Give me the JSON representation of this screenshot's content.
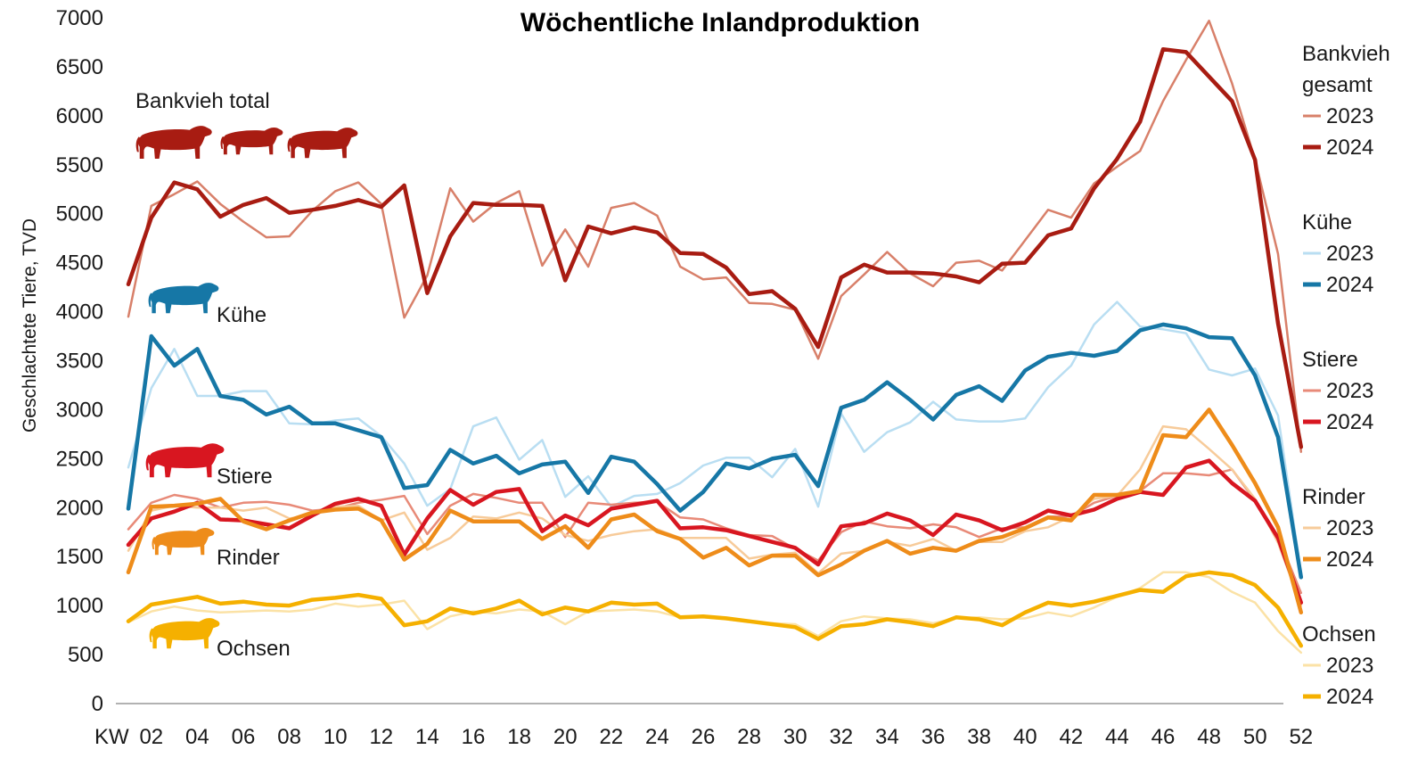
{
  "chart_data": {
    "type": "line",
    "title": "Wöchentliche Inlandproduktion",
    "ylabel": "Geschlachtete Tiere, TVD",
    "xlabel": "KW",
    "ylim": [
      0,
      7000
    ],
    "yticks": [
      0,
      500,
      1000,
      1500,
      2000,
      2500,
      3000,
      3500,
      4000,
      4500,
      5000,
      5500,
      6000,
      6500,
      7000
    ],
    "xticks": [
      "02",
      "04",
      "06",
      "08",
      "10",
      "12",
      "14",
      "16",
      "18",
      "20",
      "22",
      "24",
      "26",
      "28",
      "30",
      "32",
      "34",
      "36",
      "38",
      "40",
      "42",
      "44",
      "46",
      "48",
      "50",
      "52"
    ],
    "x": [
      1,
      2,
      3,
      4,
      5,
      6,
      7,
      8,
      9,
      10,
      11,
      12,
      13,
      14,
      15,
      16,
      17,
      18,
      19,
      20,
      21,
      22,
      23,
      24,
      25,
      26,
      27,
      28,
      29,
      30,
      31,
      32,
      33,
      34,
      35,
      36,
      37,
      38,
      39,
      40,
      41,
      42,
      43,
      44,
      45,
      46,
      47,
      48,
      49,
      50,
      51,
      52
    ],
    "grid": false,
    "legend_position": "right",
    "groups": [
      {
        "id": "bankvieh",
        "legend_title": [
          "Bankvieh",
          "gesamt"
        ],
        "annotation": "Bankvieh total",
        "icon": "cattle-icon",
        "series": [
          {
            "name": "2023",
            "color": "#d8806a",
            "width": 2.5,
            "values": [
              3950,
              5080,
              5200,
              5330,
              5100,
              4920,
              4760,
              4770,
              5030,
              5230,
              5320,
              5100,
              3940,
              4370,
              5260,
              4920,
              5110,
              5230,
              4470,
              4840,
              4460,
              5060,
              5110,
              4980,
              4460,
              4330,
              4350,
              4090,
              4080,
              4020,
              3520,
              4160,
              4380,
              4610,
              4390,
              4260,
              4500,
              4520,
              4420,
              4730,
              5040,
              4960,
              5310,
              5480,
              5640,
              6150,
              6570,
              6970,
              6330,
              5550,
              4590,
              2570
            ]
          },
          {
            "name": "2024",
            "color": "#a81c12",
            "width": 4.5,
            "values": [
              4280,
              4960,
              5320,
              5250,
              4970,
              5090,
              5160,
              5010,
              5040,
              5080,
              5140,
              5070,
              5290,
              4190,
              4770,
              5110,
              5090,
              5090,
              5080,
              4320,
              4870,
              4800,
              4860,
              4810,
              4600,
              4590,
              4450,
              4180,
              4210,
              4030,
              3640,
              4350,
              4480,
              4400,
              4400,
              4390,
              4360,
              4300,
              4490,
              4500,
              4780,
              4850,
              5260,
              5560,
              5940,
              6680,
              6650,
              6400,
              6150,
              5550,
              3880,
              2620
            ]
          }
        ]
      },
      {
        "id": "kuehe",
        "legend_title": [
          "Kühe"
        ],
        "annotation": "Kühe",
        "icon": "cow-icon",
        "series": [
          {
            "name": "2023",
            "color": "#b9def2",
            "width": 2.5,
            "values": [
              2410,
              3220,
              3620,
              3140,
              3140,
              3190,
              3190,
              2860,
              2850,
              2890,
              2910,
              2730,
              2450,
              2020,
              2190,
              2830,
              2920,
              2490,
              2690,
              2110,
              2320,
              2010,
              2120,
              2140,
              2250,
              2430,
              2510,
              2510,
              2310,
              2600,
              2010,
              2960,
              2570,
              2770,
              2870,
              3080,
              2900,
              2880,
              2880,
              2910,
              3230,
              3450,
              3870,
              4100,
              3850,
              3820,
              3780,
              3410,
              3350,
              3420,
              2940,
              1330
            ]
          },
          {
            "name": "2024",
            "color": "#1677a6",
            "width": 4.5,
            "values": [
              1990,
              3750,
              3450,
              3620,
              3140,
              3100,
              2950,
              3030,
              2860,
              2860,
              2790,
              2720,
              2200,
              2230,
              2590,
              2450,
              2530,
              2350,
              2440,
              2470,
              2150,
              2520,
              2470,
              2240,
              1970,
              2160,
              2450,
              2400,
              2500,
              2540,
              2220,
              3020,
              3100,
              3280,
              3100,
              2900,
              3150,
              3240,
              3090,
              3400,
              3540,
              3580,
              3550,
              3600,
              3810,
              3870,
              3830,
              3740,
              3730,
              3350,
              2720,
              1290
            ]
          }
        ]
      },
      {
        "id": "stiere",
        "legend_title": [
          "Stiere"
        ],
        "annotation": "Stiere",
        "icon": "bull-icon",
        "series": [
          {
            "name": "2023",
            "color": "#e88a78",
            "width": 2.5,
            "values": [
              1780,
              2050,
              2130,
              2090,
              2000,
              2050,
              2060,
              2030,
              1970,
              1990,
              2050,
              2080,
              2120,
              1730,
              2020,
              2140,
              2100,
              2050,
              2050,
              1700,
              2050,
              2030,
              2050,
              2060,
              1900,
              1880,
              1790,
              1720,
              1710,
              1580,
              1460,
              1750,
              1860,
              1810,
              1790,
              1830,
              1800,
              1700,
              1790,
              1800,
              1910,
              1910,
              2050,
              2120,
              2170,
              2350,
              2350,
              2330,
              2390,
              2070,
              1700,
              1130
            ]
          },
          {
            "name": "2024",
            "color": "#d81620",
            "width": 4.5,
            "values": [
              1620,
              1890,
              1960,
              2050,
              1880,
              1870,
              1830,
              1790,
              1920,
              2040,
              2090,
              2020,
              1520,
              1890,
              2180,
              2030,
              2160,
              2190,
              1760,
              1920,
              1820,
              1990,
              2030,
              2070,
              1790,
              1800,
              1770,
              1710,
              1650,
              1590,
              1420,
              1810,
              1840,
              1940,
              1870,
              1720,
              1930,
              1870,
              1770,
              1850,
              1970,
              1920,
              1980,
              2090,
              2160,
              2130,
              2410,
              2480,
              2250,
              2070,
              1690,
              1030
            ]
          }
        ]
      },
      {
        "id": "rinder",
        "legend_title": [
          "Rinder"
        ],
        "annotation": "Rinder",
        "icon": "heifer-icon",
        "series": [
          {
            "name": "2023",
            "color": "#f7cb9a",
            "width": 2.5,
            "values": [
              1560,
              1970,
              2020,
              2000,
              2000,
              1970,
              2000,
              1890,
              1920,
              2010,
              2020,
              1870,
              1950,
              1570,
              1690,
              1910,
              1890,
              1950,
              1890,
              1720,
              1660,
              1720,
              1760,
              1780,
              1690,
              1690,
              1690,
              1480,
              1520,
              1540,
              1330,
              1530,
              1560,
              1650,
              1610,
              1680,
              1560,
              1650,
              1650,
              1760,
              1800,
              1910,
              2090,
              2120,
              2390,
              2830,
              2800,
              2600,
              2390,
              2090,
              1640,
              1000
            ]
          },
          {
            "name": "2024",
            "color": "#ee8c1a",
            "width": 4.5,
            "values": [
              1340,
              2010,
              2020,
              2040,
              2090,
              1860,
              1780,
              1870,
              1950,
              1980,
              1990,
              1870,
              1470,
              1630,
              1970,
              1860,
              1860,
              1860,
              1680,
              1810,
              1590,
              1880,
              1930,
              1760,
              1680,
              1490,
              1590,
              1410,
              1510,
              1510,
              1310,
              1420,
              1560,
              1660,
              1530,
              1590,
              1560,
              1660,
              1700,
              1790,
              1900,
              1870,
              2130,
              2130,
              2170,
              2740,
              2720,
              3000,
              2640,
              2250,
              1800,
              930
            ]
          }
        ]
      },
      {
        "id": "ochsen",
        "legend_title": [
          "Ochsen"
        ],
        "annotation": "Ochsen",
        "icon": "ox-icon",
        "series": [
          {
            "name": "2023",
            "color": "#fbe2a6",
            "width": 2.5,
            "values": [
              830,
              940,
              990,
              950,
              930,
              940,
              950,
              940,
              960,
              1020,
              990,
              1010,
              1050,
              760,
              890,
              940,
              920,
              960,
              940,
              810,
              940,
              950,
              960,
              940,
              880,
              880,
              860,
              830,
              820,
              810,
              690,
              840,
              890,
              870,
              860,
              820,
              870,
              880,
              860,
              870,
              930,
              890,
              980,
              1090,
              1180,
              1340,
              1340,
              1290,
              1140,
              1030,
              740,
              520
            ]
          },
          {
            "name": "2024",
            "color": "#f5b000",
            "width": 4.5,
            "values": [
              840,
              1010,
              1050,
              1090,
              1020,
              1040,
              1010,
              1000,
              1060,
              1080,
              1110,
              1070,
              800,
              840,
              970,
              920,
              970,
              1050,
              910,
              980,
              940,
              1030,
              1010,
              1020,
              880,
              890,
              870,
              840,
              810,
              780,
              660,
              790,
              810,
              860,
              830,
              790,
              880,
              860,
              800,
              930,
              1030,
              1000,
              1040,
              1100,
              1160,
              1140,
              1300,
              1340,
              1310,
              1210,
              980,
              590
            ]
          }
        ]
      }
    ]
  }
}
